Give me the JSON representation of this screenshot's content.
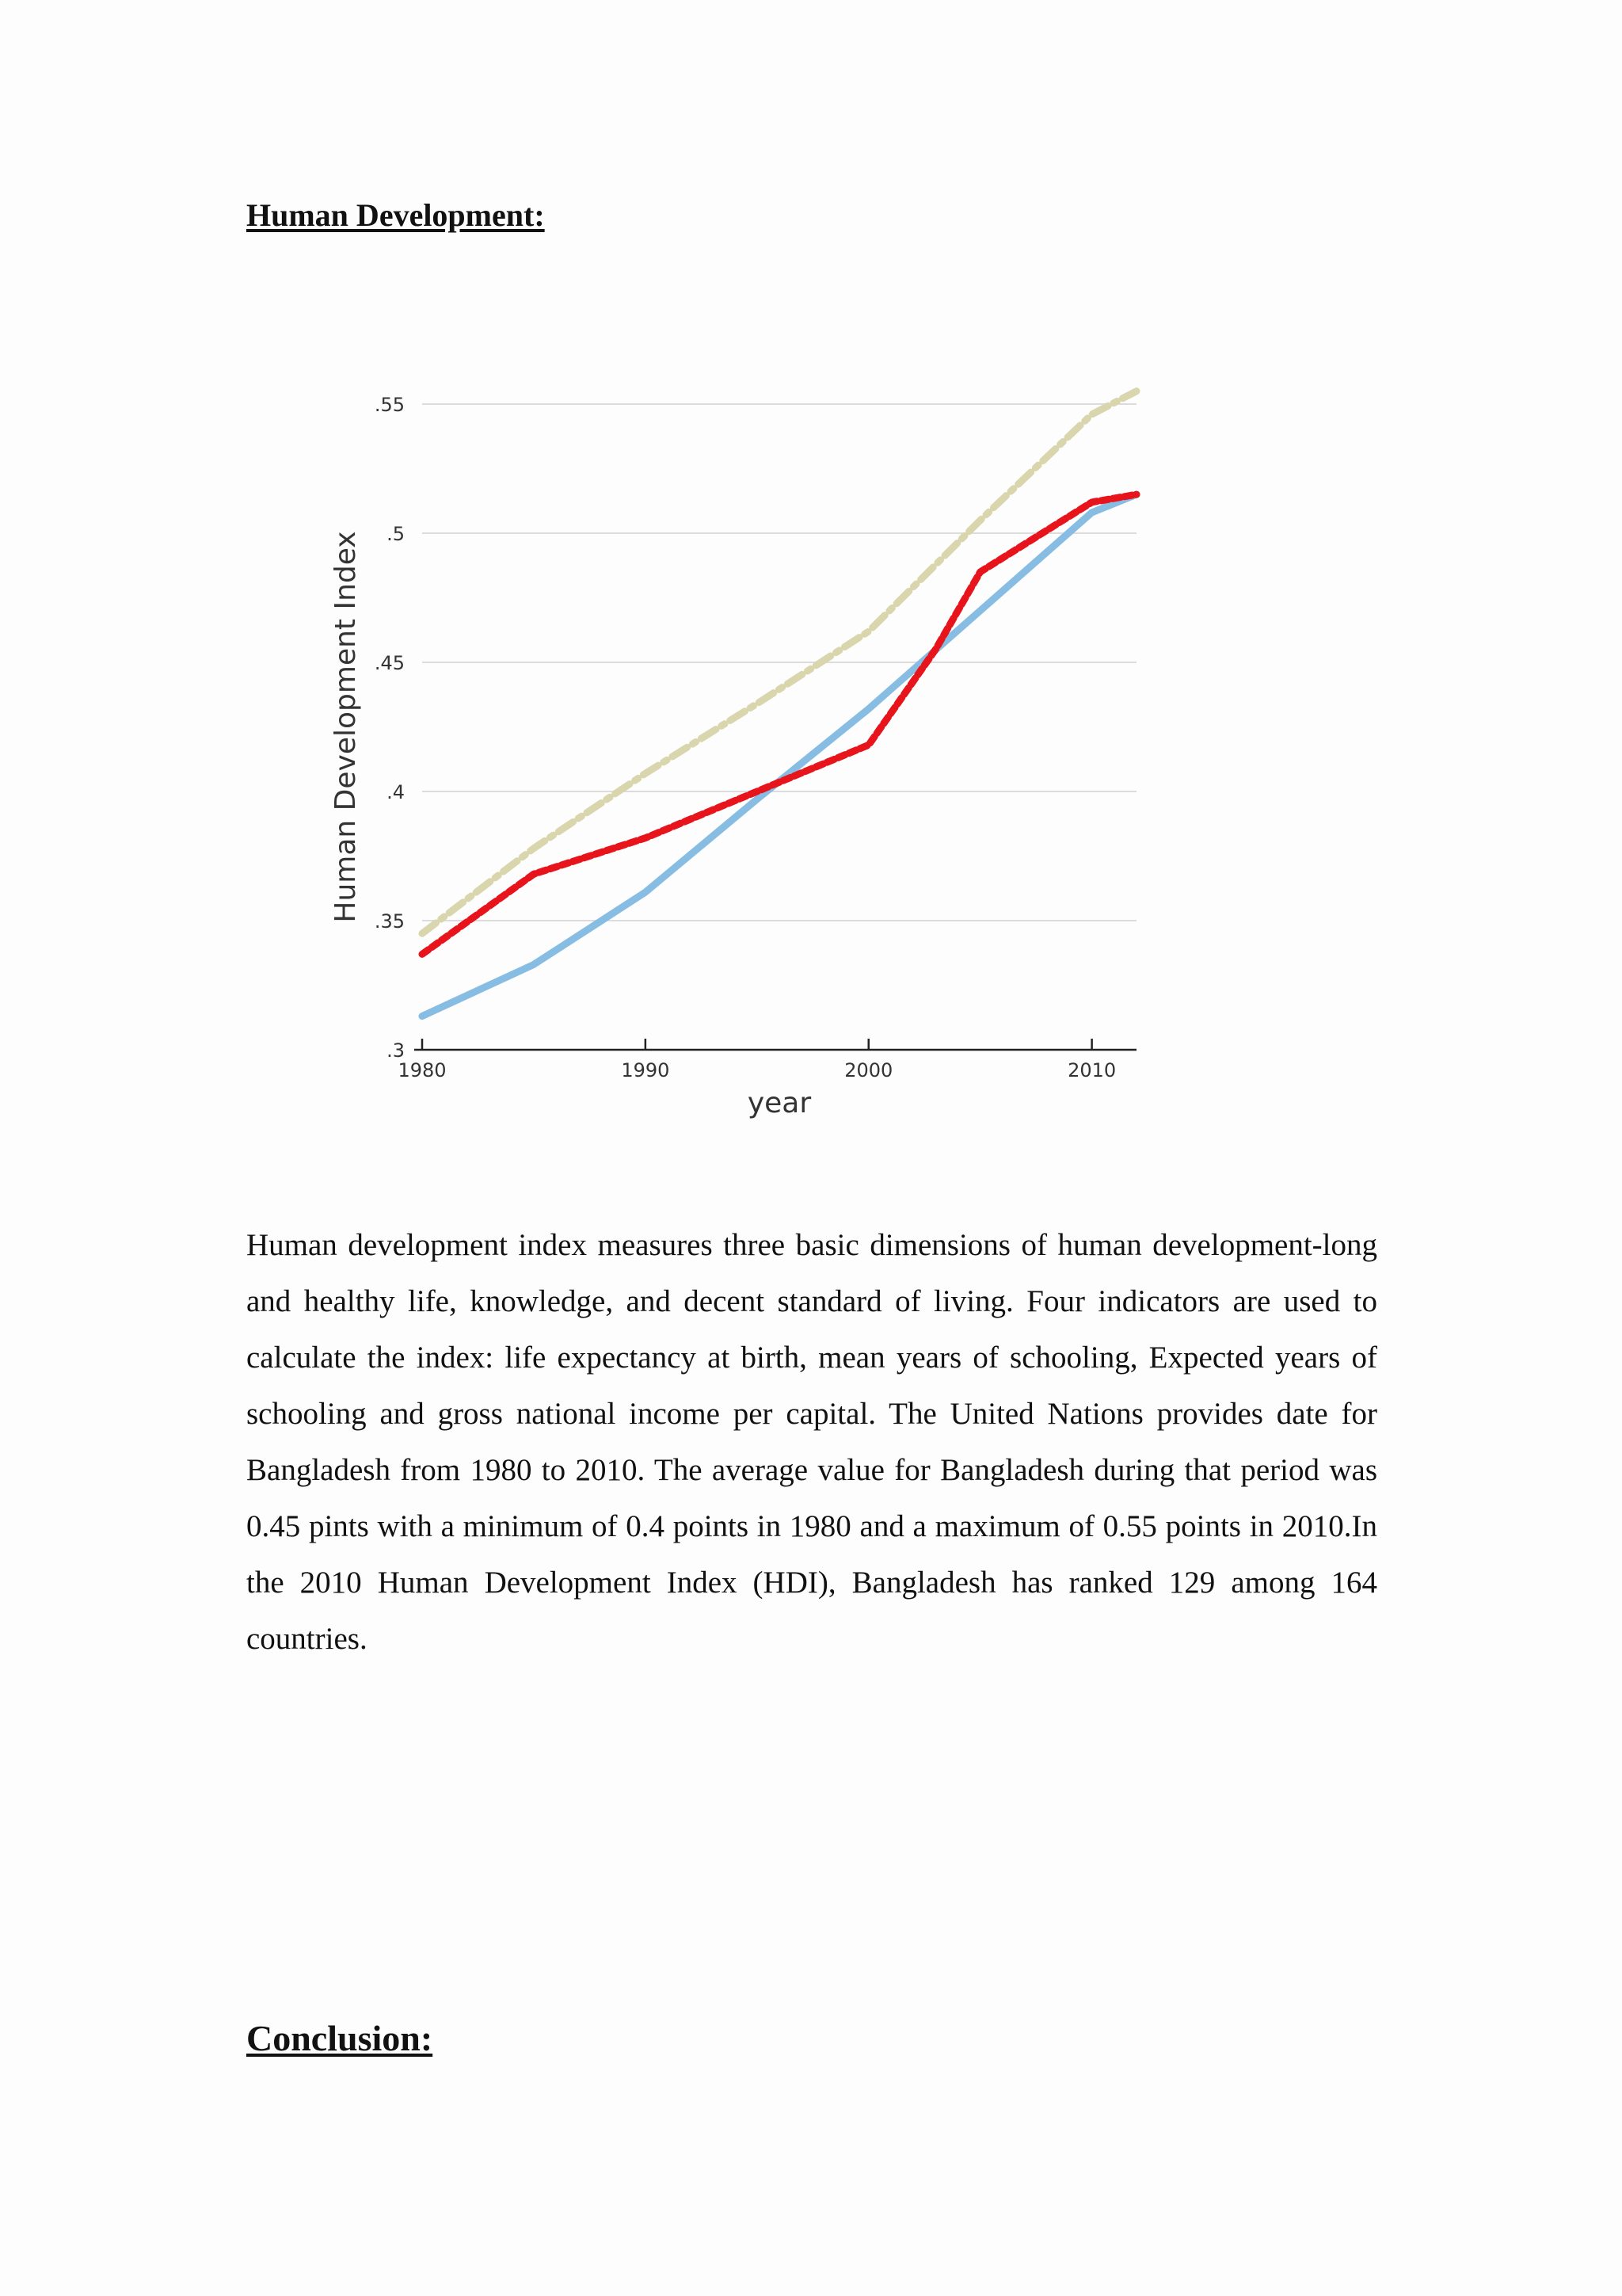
{
  "heading": "Human Development:",
  "conclusion_heading": "Conclusion:",
  "paragraph": "Human development index measures three basic dimensions of human development-long and healthy life, knowledge, and decent standard of living. Four indicators are used to calculate the index: life expectancy at birth, mean years of schooling, Expected years of schooling and gross national income per capital. The United Nations provides date for Bangladesh from 1980 to 2010. The average value for Bangladesh during that period was 0.45 pints with a minimum of 0.4 points in 1980 and a maximum of 0.55 points in 2010.In the 2010 Human Development Index (HDI), Bangladesh has ranked 129 among 164 countries.",
  "chart_data": {
    "type": "line",
    "title": "",
    "xlabel": "year",
    "ylabel": "Human Development Index",
    "xlim": [
      1980,
      2012
    ],
    "ylim": [
      0.3,
      0.55
    ],
    "x_ticks": [
      1980,
      1990,
      2000,
      2010
    ],
    "x_tick_labels": [
      "1980",
      "1990",
      "2000",
      "2010"
    ],
    "y_ticks": [
      0.3,
      0.35,
      0.4,
      0.45,
      0.5,
      0.55
    ],
    "y_tick_labels": [
      ".3",
      ".35",
      ".4",
      ".45",
      ".5",
      ".55"
    ],
    "grid": true,
    "series": [
      {
        "color": "#d9d6ad",
        "style": "dash-dot",
        "x": [
          1980,
          1985,
          1990,
          1995,
          2000,
          2005,
          2010,
          2012
        ],
        "y": [
          0.345,
          0.378,
          0.407,
          0.434,
          0.462,
          0.505,
          0.546,
          0.555
        ]
      },
      {
        "color": "#87bde3",
        "style": "solid",
        "x": [
          1980,
          1985,
          1990,
          1995,
          2000,
          2005,
          2010,
          2012
        ],
        "y": [
          0.313,
          0.333,
          0.361,
          0.397,
          0.432,
          0.47,
          0.508,
          0.515
        ]
      },
      {
        "color": "#e8141c",
        "style": "dash",
        "x": [
          1980,
          1985,
          1990,
          1995,
          2000,
          2003,
          2005,
          2010,
          2012
        ],
        "y": [
          0.337,
          0.368,
          0.382,
          0.4,
          0.418,
          0.455,
          0.485,
          0.512,
          0.515
        ]
      }
    ]
  }
}
